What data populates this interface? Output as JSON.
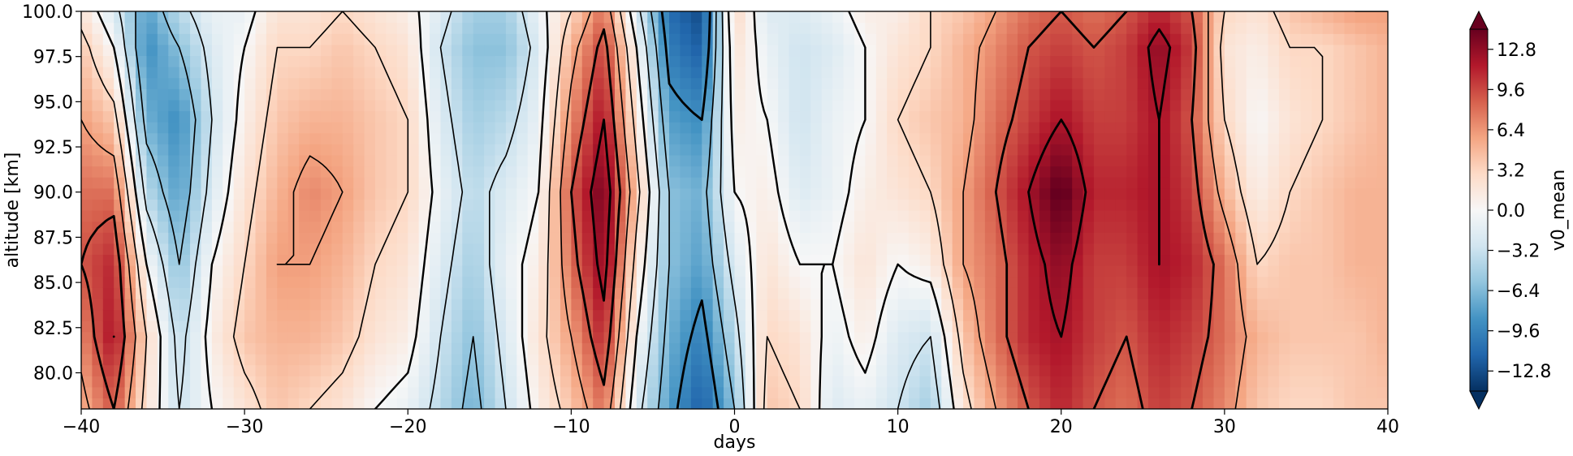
{
  "chart_data": {
    "type": "heatmap",
    "xlabel": "days",
    "ylabel": "altitude [km]",
    "colorbar_label": "v0_mean",
    "xlim": [
      -40,
      40
    ],
    "ylim": [
      78,
      100
    ],
    "x_ticks": [
      -40,
      -30,
      -20,
      -10,
      0,
      10,
      20,
      30,
      40
    ],
    "x_tick_labels": [
      "−40",
      "−30",
      "−20",
      "−10",
      "0",
      "10",
      "20",
      "30",
      "40"
    ],
    "y_ticks": [
      80.0,
      82.5,
      85.0,
      87.5,
      90.0,
      92.5,
      95.0,
      97.5,
      100.0
    ],
    "y_tick_labels": [
      "80.0",
      "82.5",
      "85.0",
      "87.5",
      "90.0",
      "92.5",
      "95.0",
      "97.5",
      "100.0"
    ],
    "colorbar_range": [
      -14.4,
      14.4
    ],
    "colorbar_ticks": [
      -12.8,
      -9.6,
      -6.4,
      -3.2,
      0.0,
      3.2,
      6.4,
      9.6,
      12.8
    ],
    "colorbar_tick_labels": [
      "−12.8",
      "−9.6",
      "−6.4",
      "−3.2",
      "0.0",
      "3.2",
      "6.4",
      "9.6",
      "12.8"
    ],
    "colormap": [
      "#053061",
      "#2166ac",
      "#4393c3",
      "#92c5de",
      "#d1e5f0",
      "#f7f7f7",
      "#fddbc7",
      "#f4a582",
      "#d6604d",
      "#b2182b",
      "#67001f"
    ],
    "column_days": [
      -40,
      -38,
      -36,
      -34,
      -32,
      -30,
      -28,
      -26,
      -24,
      -22,
      -20,
      -18,
      -16,
      -14,
      -12,
      -10,
      -8,
      -6,
      -4,
      -2,
      0,
      2,
      4,
      6,
      8,
      10,
      12,
      14,
      16,
      18,
      20,
      22,
      24,
      26,
      28,
      30,
      32,
      34,
      36,
      38,
      40
    ],
    "row_altitudes_km": [
      78,
      82,
      86,
      90,
      94,
      98,
      100
    ],
    "values_by_column": [
      [
        5,
        7,
        9,
        8,
        6,
        4,
        2
      ],
      [
        9,
        12,
        11,
        8,
        4,
        0,
        -2
      ],
      [
        2,
        3,
        0,
        -4,
        -7,
        -9,
        -8
      ],
      [
        -3,
        -4,
        -6,
        -8,
        -9,
        -6,
        -4
      ],
      [
        0,
        1,
        0,
        -2,
        -3,
        -2,
        -1
      ],
      [
        2,
        4,
        3,
        2,
        1,
        0,
        -1
      ],
      [
        4,
        5,
        6,
        5,
        4,
        3,
        2
      ],
      [
        3,
        5,
        6,
        7,
        5,
        3,
        2
      ],
      [
        2,
        4,
        5,
        6,
        5,
        4,
        3
      ],
      [
        0,
        2,
        3,
        4,
        4,
        3,
        2
      ],
      [
        -1,
        1,
        2,
        3,
        3,
        2,
        1
      ],
      [
        -4,
        -3,
        -2,
        -1,
        -2,
        -3,
        -2
      ],
      [
        -7,
        -6,
        -5,
        -4,
        -5,
        -6,
        -5
      ],
      [
        -3,
        -2,
        -1,
        -2,
        -4,
        -6,
        -5
      ],
      [
        1,
        2,
        1,
        0,
        -1,
        -2,
        -1
      ],
      [
        4,
        6,
        8,
        9,
        7,
        5,
        3
      ],
      [
        8,
        11,
        13,
        14,
        12,
        10,
        8
      ],
      [
        -2,
        0,
        2,
        4,
        2,
        0,
        -2
      ],
      [
        -8,
        -7,
        -6,
        -6,
        -8,
        -10,
        -11
      ],
      [
        -12,
        -10,
        -8,
        -7,
        -9,
        -12,
        -13
      ],
      [
        -6,
        -4,
        -2,
        0,
        1,
        2,
        3
      ],
      [
        4,
        3,
        2,
        1,
        0,
        -1,
        -2
      ],
      [
        3,
        2,
        0,
        -2,
        -3,
        -3,
        -2
      ],
      [
        -2,
        -1,
        0,
        -1,
        -1,
        -2,
        -1
      ],
      [
        -1,
        1,
        2,
        1,
        0,
        0,
        1
      ],
      [
        -3,
        -2,
        0,
        2,
        3,
        2,
        1
      ],
      [
        -5,
        -3,
        1,
        3,
        4,
        3,
        3
      ],
      [
        2,
        4,
        6,
        6,
        5,
        5,
        4
      ],
      [
        6,
        8,
        8,
        9,
        8,
        7,
        6
      ],
      [
        9,
        11,
        11,
        12,
        10,
        9,
        8
      ],
      [
        11,
        12,
        13,
        15,
        12,
        10,
        9
      ],
      [
        9,
        10,
        10,
        11,
        10,
        9,
        8
      ],
      [
        8,
        9,
        10,
        11,
        10,
        10,
        9
      ],
      [
        10,
        11,
        12,
        12,
        12,
        13,
        11
      ],
      [
        9,
        10,
        11,
        10,
        9,
        10,
        9
      ],
      [
        7,
        8,
        8,
        5,
        3,
        2,
        3
      ],
      [
        4,
        5,
        3,
        1,
        0,
        1,
        2
      ],
      [
        3,
        4,
        4,
        3,
        2,
        3,
        4
      ],
      [
        3,
        4,
        4,
        4,
        3,
        3,
        5
      ],
      [
        4,
        4,
        5,
        5,
        4,
        4,
        6
      ],
      [
        4,
        5,
        5,
        5,
        5,
        5,
        6
      ]
    ]
  }
}
